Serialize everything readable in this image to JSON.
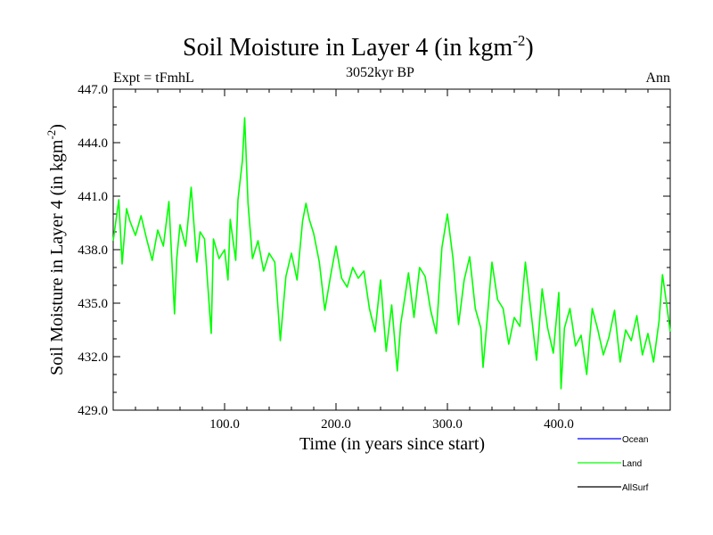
{
  "chart_data": {
    "type": "line",
    "title": "Soil Moisture in Layer 4 (in kgm",
    "title_sup": "-2",
    "title_close": ")",
    "subtitle": "3052kyr BP",
    "left_label": "Expt = tFmhL",
    "right_label": "Ann",
    "xlabel": "Time (in years since start)",
    "ylabel": "Soil Moisture in Layer 4 (in kgm",
    "ylabel_sup": "-2",
    "ylabel_close": ")",
    "xlim": [
      0,
      500
    ],
    "ylim": [
      429.0,
      447.0
    ],
    "x_ticks": [
      {
        "value": 100,
        "label": "100.0"
      },
      {
        "value": 200,
        "label": "200.0"
      },
      {
        "value": 300,
        "label": "300.0"
      },
      {
        "value": 400,
        "label": "400.0"
      }
    ],
    "y_ticks": [
      {
        "value": 429.0,
        "label": "429.0"
      },
      {
        "value": 432.0,
        "label": "432.0"
      },
      {
        "value": 435.0,
        "label": "435.0"
      },
      {
        "value": 438.0,
        "label": "438.0"
      },
      {
        "value": 441.0,
        "label": "441.0"
      },
      {
        "value": 444.0,
        "label": "444.0"
      },
      {
        "value": 447.0,
        "label": "447.0"
      }
    ],
    "legend": [
      {
        "name": "Ocean",
        "color": "#0000ff"
      },
      {
        "name": "Land",
        "color": "#00ff00"
      },
      {
        "name": "AllSurf",
        "color": "#000000"
      }
    ],
    "series": [
      {
        "name": "Land",
        "color": "#00ff00",
        "x": [
          0,
          5,
          8,
          12,
          15,
          20,
          25,
          30,
          35,
          40,
          45,
          50,
          55,
          57,
          60,
          65,
          70,
          75,
          78,
          82,
          85,
          88,
          90,
          95,
          100,
          103,
          105,
          110,
          112,
          116,
          118,
          121,
          125,
          130,
          135,
          140,
          145,
          150,
          155,
          160,
          165,
          170,
          173,
          176,
          180,
          185,
          190,
          195,
          200,
          205,
          210,
          215,
          220,
          225,
          230,
          235,
          240,
          245,
          250,
          255,
          258,
          262,
          265,
          270,
          275,
          280,
          285,
          290,
          295,
          300,
          305,
          310,
          315,
          320,
          325,
          330,
          332,
          335,
          340,
          345,
          350,
          355,
          360,
          365,
          370,
          375,
          380,
          385,
          390,
          395,
          400,
          402,
          405,
          410,
          415,
          420,
          425,
          430,
          435,
          440,
          445,
          450,
          455,
          460,
          465,
          470,
          475,
          480,
          485,
          490,
          493,
          496,
          500
        ],
        "y": [
          438.5,
          440.8,
          437.2,
          440.3,
          439.6,
          438.8,
          439.9,
          438.6,
          437.4,
          439.1,
          438.2,
          440.7,
          434.4,
          437.5,
          439.4,
          438.2,
          441.5,
          437.3,
          439.0,
          438.6,
          435.9,
          433.3,
          438.6,
          437.5,
          438.0,
          436.3,
          439.7,
          437.4,
          440.8,
          443.0,
          445.4,
          440.6,
          437.5,
          438.5,
          436.8,
          437.8,
          437.3,
          432.9,
          436.5,
          437.8,
          436.3,
          439.6,
          440.6,
          439.7,
          438.9,
          437.3,
          434.6,
          436.5,
          438.2,
          436.4,
          435.9,
          437.0,
          436.4,
          436.8,
          434.7,
          433.4,
          436.3,
          432.3,
          434.9,
          431.2,
          433.8,
          435.4,
          436.7,
          434.2,
          437.0,
          436.5,
          434.6,
          433.3,
          438.1,
          440.0,
          437.5,
          433.8,
          436.3,
          437.6,
          434.7,
          433.6,
          431.4,
          433.6,
          437.3,
          435.2,
          434.7,
          432.7,
          434.2,
          433.7,
          437.3,
          434.5,
          431.8,
          435.8,
          433.6,
          432.2,
          435.6,
          430.2,
          433.6,
          434.7,
          432.6,
          433.2,
          431.0,
          434.7,
          433.5,
          432.1,
          433.1,
          434.6,
          431.7,
          433.5,
          432.9,
          434.3,
          432.1,
          433.3,
          431.7,
          434.0,
          436.6,
          435.3,
          433.4
        ]
      }
    ]
  }
}
